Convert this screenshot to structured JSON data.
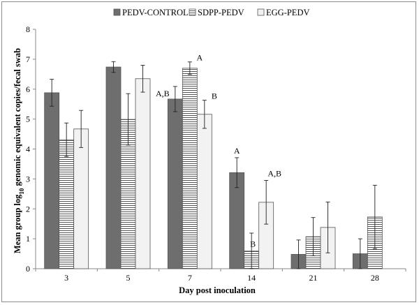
{
  "chart_data": {
    "type": "bar",
    "xlabel": "Day post inoculation",
    "ylabel": "Mean group log₁₀ genomic equivalent copies/fecal swab",
    "ylim": [
      0,
      8
    ],
    "yticks": [
      "0",
      "1",
      "2",
      "3",
      "4",
      "5",
      "6",
      "7",
      "8"
    ],
    "grid": false,
    "legend_position": "top",
    "categories": [
      "3",
      "5",
      "7",
      "14",
      "21",
      "28"
    ],
    "series": [
      {
        "name": "PEDV-CONTROL",
        "color": "#6e6e6e",
        "pattern": "solid",
        "values": [
          5.88,
          6.74,
          5.67,
          3.21,
          0.48,
          0.5
        ],
        "errors": [
          0.45,
          0.18,
          0.42,
          0.5,
          0.48,
          0.5
        ]
      },
      {
        "name": "SDPP-PEDV",
        "color": "#ffffff",
        "pattern": "horizontal-stripes",
        "values": [
          4.31,
          4.99,
          6.7,
          0.59,
          1.07,
          1.73
        ],
        "errors": [
          0.56,
          0.86,
          0.21,
          0.6,
          0.64,
          1.06
        ]
      },
      {
        "name": "EGG-PEDV",
        "color": "#f2f2f2",
        "pattern": "light",
        "values": [
          4.67,
          6.35,
          5.16,
          2.22,
          1.38,
          null
        ],
        "errors": [
          0.62,
          0.45,
          0.47,
          0.73,
          0.85,
          null
        ]
      }
    ],
    "annotations": [
      {
        "text": "A,B",
        "category": "7",
        "series": 0
      },
      {
        "text": "A",
        "category": "7",
        "series": 1
      },
      {
        "text": "B",
        "category": "7",
        "series": 2
      },
      {
        "text": "A",
        "category": "14",
        "series": 0
      },
      {
        "text": "B",
        "category": "14",
        "series": 1
      },
      {
        "text": "A,B",
        "category": "14",
        "series": 2
      }
    ]
  }
}
